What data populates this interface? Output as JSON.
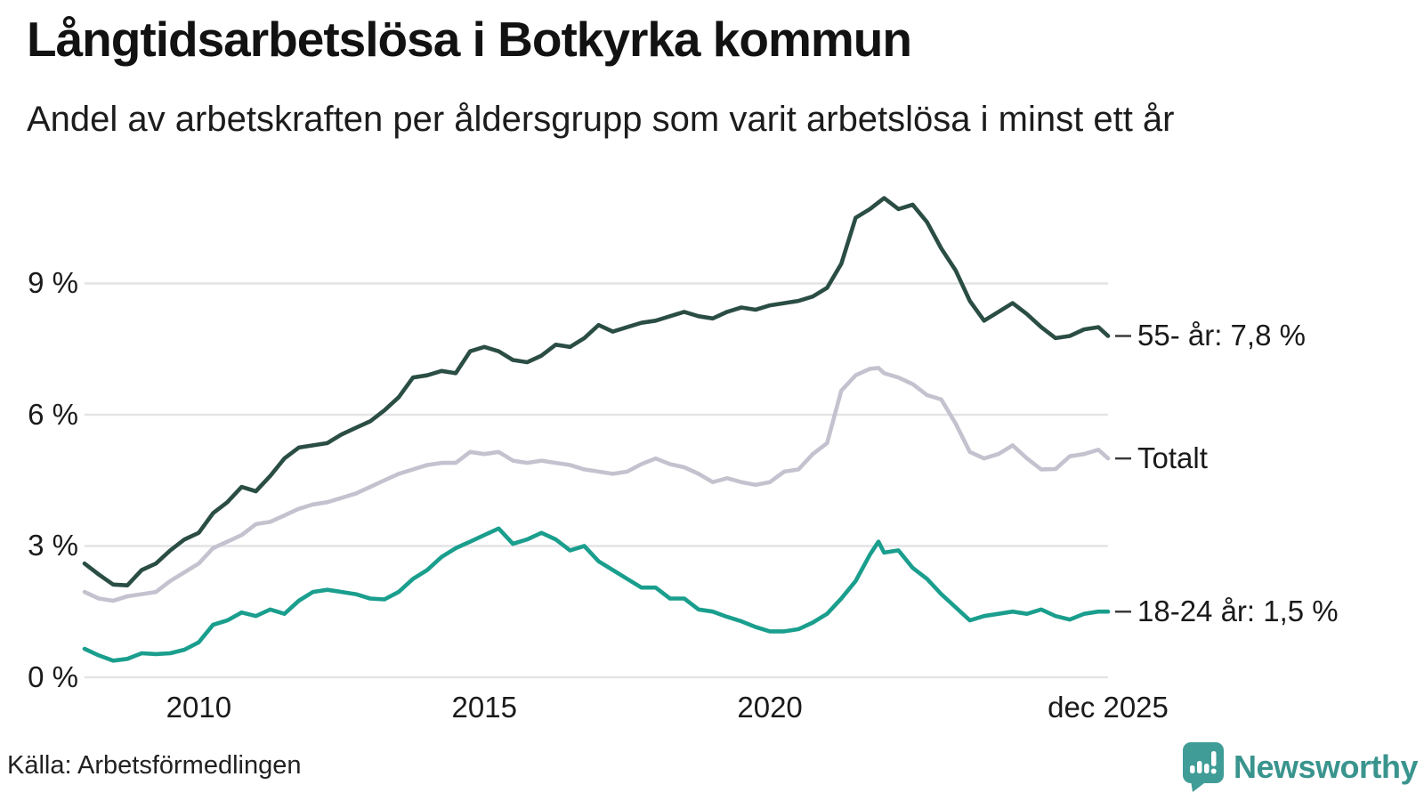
{
  "title": "Långtidsarbetslösa i Botkyrka kommun",
  "subtitle": "Andel av arbetskraften per åldersgrupp som varit arbetslösa i minst ett år",
  "source": "Källa: Arbetsförmedlingen",
  "brand": {
    "name": "Newsworthy",
    "icon": "newsworthy-speech-bubble-bar-chart-icon",
    "color": "#3f9c96"
  },
  "chart_data": {
    "type": "line",
    "title": "Långtidsarbetslösa i Botkyrka kommun",
    "subtitle": "Andel av arbetskraften per åldersgrupp som varit arbetslösa i minst ett år",
    "x_unit": "year (decimal, quarterly samples of monthly data)",
    "xlim": [
      2008,
      2025.92
    ],
    "ylim": [
      0,
      11.7
    ],
    "grid": "horizontal",
    "legend_position": "right-end-labels",
    "label_connector": "–",
    "yticks": [
      {
        "value": 0,
        "label": "0 %"
      },
      {
        "value": 3,
        "label": "3 %"
      },
      {
        "value": 6,
        "label": "6 %"
      },
      {
        "value": 9,
        "label": "9 %"
      }
    ],
    "xticks": [
      {
        "value": 2010,
        "label": "2010"
      },
      {
        "value": 2015,
        "label": "2015"
      },
      {
        "value": 2020,
        "label": "2020"
      },
      {
        "value": 2025.92,
        "label": "dec 2025"
      }
    ],
    "x": [
      2008,
      2008.25,
      2008.5,
      2008.75,
      2009,
      2009.25,
      2009.5,
      2009.75,
      2010,
      2010.25,
      2010.5,
      2010.75,
      2011,
      2011.25,
      2011.5,
      2011.75,
      2012,
      2012.25,
      2012.5,
      2012.75,
      2013,
      2013.25,
      2013.5,
      2013.75,
      2014,
      2014.25,
      2014.5,
      2014.75,
      2015,
      2015.25,
      2015.5,
      2015.75,
      2016,
      2016.25,
      2016.5,
      2016.75,
      2017,
      2017.25,
      2017.5,
      2017.75,
      2018,
      2018.25,
      2018.5,
      2018.75,
      2019,
      2019.25,
      2019.5,
      2019.75,
      2020,
      2020.25,
      2020.5,
      2020.75,
      2021,
      2021.25,
      2021.5,
      2021.75,
      2021.9,
      2022,
      2022.25,
      2022.5,
      2022.75,
      2023,
      2023.25,
      2023.5,
      2023.75,
      2024,
      2024.25,
      2024.5,
      2024.75,
      2025,
      2025.25,
      2025.5,
      2025.75,
      2025.92
    ],
    "series": [
      {
        "name": "55- år",
        "end_label": "55- år: 7,8 %",
        "last_value": 7.8,
        "color": "#2a4d44",
        "values": [
          2.6,
          2.35,
          2.12,
          2.1,
          2.45,
          2.6,
          2.9,
          3.15,
          3.3,
          3.75,
          4.0,
          4.35,
          4.25,
          4.6,
          5.0,
          5.25,
          5.3,
          5.35,
          5.55,
          5.7,
          5.85,
          6.1,
          6.4,
          6.85,
          6.9,
          7.0,
          6.95,
          7.45,
          7.55,
          7.45,
          7.25,
          7.2,
          7.35,
          7.6,
          7.55,
          7.75,
          8.05,
          7.9,
          8.0,
          8.1,
          8.15,
          8.25,
          8.35,
          8.25,
          8.2,
          8.35,
          8.45,
          8.4,
          8.5,
          8.55,
          8.6,
          8.7,
          8.9,
          9.45,
          10.5,
          10.7,
          10.85,
          10.95,
          10.7,
          10.8,
          10.4,
          9.8,
          9.3,
          8.6,
          8.15,
          8.35,
          8.55,
          8.3,
          8.0,
          7.75,
          7.8,
          7.95,
          8.0,
          7.8
        ]
      },
      {
        "name": "Totalt",
        "end_label": "Totalt",
        "last_value": 5.0,
        "color": "#c5c2cf",
        "values": [
          1.95,
          1.8,
          1.75,
          1.85,
          1.9,
          1.95,
          2.2,
          2.4,
          2.6,
          2.95,
          3.1,
          3.25,
          3.5,
          3.55,
          3.7,
          3.85,
          3.95,
          4.0,
          4.1,
          4.2,
          4.35,
          4.5,
          4.65,
          4.75,
          4.85,
          4.9,
          4.9,
          5.15,
          5.1,
          5.15,
          4.95,
          4.9,
          4.95,
          4.9,
          4.85,
          4.75,
          4.7,
          4.65,
          4.7,
          4.87,
          5.0,
          4.87,
          4.8,
          4.65,
          4.46,
          4.55,
          4.46,
          4.4,
          4.46,
          4.7,
          4.75,
          5.1,
          5.35,
          6.55,
          6.9,
          7.05,
          7.07,
          6.95,
          6.85,
          6.7,
          6.45,
          6.35,
          5.8,
          5.15,
          5.0,
          5.1,
          5.3,
          5.0,
          4.75,
          4.76,
          5.05,
          5.1,
          5.2,
          5.0
        ]
      },
      {
        "name": "18-24 år",
        "end_label": "18-24 år: 1,5 %",
        "last_value": 1.5,
        "color": "#1a9e8d",
        "values": [
          0.65,
          0.5,
          0.38,
          0.42,
          0.55,
          0.53,
          0.55,
          0.63,
          0.8,
          1.2,
          1.3,
          1.48,
          1.4,
          1.55,
          1.45,
          1.75,
          1.95,
          2.0,
          1.95,
          1.9,
          1.8,
          1.78,
          1.95,
          2.25,
          2.45,
          2.75,
          2.95,
          3.1,
          3.25,
          3.4,
          3.05,
          3.15,
          3.3,
          3.15,
          2.9,
          3.0,
          2.65,
          2.45,
          2.25,
          2.05,
          2.05,
          1.8,
          1.8,
          1.55,
          1.5,
          1.38,
          1.28,
          1.15,
          1.05,
          1.05,
          1.1,
          1.25,
          1.45,
          1.8,
          2.2,
          2.8,
          3.1,
          2.85,
          2.9,
          2.5,
          2.25,
          1.9,
          1.6,
          1.3,
          1.4,
          1.45,
          1.5,
          1.45,
          1.55,
          1.4,
          1.32,
          1.45,
          1.5,
          1.5
        ]
      }
    ],
    "grid_color": "#e4e3e6",
    "text_color": "#1a1a1a",
    "connector_color": "#3a3a3a"
  }
}
